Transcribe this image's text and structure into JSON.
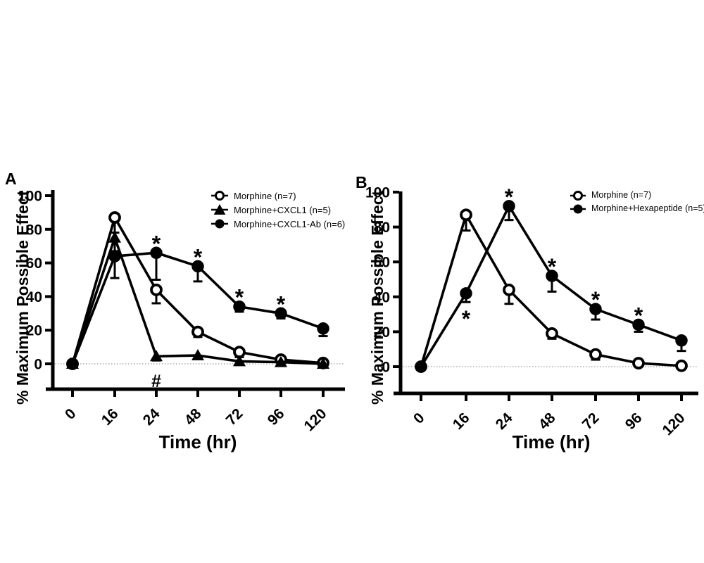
{
  "figure": {
    "background": "#ffffff",
    "ink_color": "#000000",
    "zero_line_color": "#9a9a9a"
  },
  "chart_data": [
    {
      "type": "line",
      "panel_label": "A",
      "title": "",
      "xlabel": "Time (hr)",
      "ylabel": "% Maximum Possible Effect",
      "x_tick_labels": [
        "0",
        "16",
        "24",
        "48",
        "72",
        "96",
        "120"
      ],
      "y_tick_labels": [
        "0",
        "20",
        "40",
        "60",
        "80",
        "100"
      ],
      "y_tick_values": [
        0,
        20,
        40,
        60,
        80,
        100
      ],
      "ylim": [
        0,
        100
      ],
      "grid": false,
      "zero_reference_line": true,
      "legend_position": "top-right",
      "series": [
        {
          "name": "Morphine (n=7)",
          "marker": "open-circle",
          "values": [
            0,
            87,
            44,
            19,
            7,
            2.5,
            0.5
          ],
          "err_low": [
            0,
            9,
            8,
            3,
            3,
            1.5,
            0
          ]
        },
        {
          "name": "Morphine+CXCL1 (n=5)",
          "marker": "filled-triangle",
          "values": [
            0,
            75,
            4.5,
            5,
            1.5,
            1,
            0
          ],
          "err_low": [
            0,
            8,
            2.5,
            1.5,
            0,
            0,
            0
          ]
        },
        {
          "name": "Morphine+CXCL1-Ab (n=6)",
          "marker": "filled-circle",
          "values": [
            0,
            64,
            66,
            58,
            34,
            30,
            21
          ],
          "err_low": [
            0,
            13,
            16,
            9,
            3,
            3,
            4.5
          ]
        }
      ],
      "annotations": [
        {
          "text": "*",
          "series": 2,
          "point": 2,
          "placement": "above"
        },
        {
          "text": "*",
          "series": 2,
          "point": 3,
          "placement": "above"
        },
        {
          "text": "*",
          "series": 2,
          "point": 4,
          "placement": "above"
        },
        {
          "text": "*",
          "series": 2,
          "point": 5,
          "placement": "above"
        },
        {
          "text": "#",
          "series": 1,
          "point": 2,
          "placement": "below"
        }
      ]
    },
    {
      "type": "line",
      "panel_label": "B",
      "title": "",
      "xlabel": "Time (hr)",
      "ylabel": "% Maximum Possible Effect",
      "x_tick_labels": [
        "0",
        "16",
        "24",
        "48",
        "72",
        "96",
        "120"
      ],
      "y_tick_labels": [
        "0",
        "20",
        "40",
        "60",
        "80",
        "100"
      ],
      "y_tick_values": [
        0,
        20,
        40,
        60,
        80,
        100
      ],
      "ylim": [
        0,
        100
      ],
      "grid": false,
      "zero_reference_line": true,
      "legend_position": "top-right",
      "series": [
        {
          "name": "Morphine (n=7)",
          "marker": "open-circle",
          "values": [
            0,
            87,
            44,
            19,
            7,
            2,
            0.5
          ],
          "err_low": [
            0,
            9,
            8,
            3,
            3,
            1.5,
            0
          ]
        },
        {
          "name": "Morphine+Hexapeptide (n=5)",
          "marker": "filled-circle",
          "values": [
            0,
            42,
            92,
            52,
            33,
            24,
            15
          ],
          "err_low": [
            0,
            5,
            8,
            9,
            6,
            4,
            6
          ]
        }
      ],
      "annotations": [
        {
          "text": "*",
          "series": 1,
          "point": 1,
          "placement": "below"
        },
        {
          "text": "*",
          "series": 1,
          "point": 2,
          "placement": "above"
        },
        {
          "text": "*",
          "series": 1,
          "point": 3,
          "placement": "above"
        },
        {
          "text": "*",
          "series": 1,
          "point": 4,
          "placement": "above"
        },
        {
          "text": "*",
          "series": 1,
          "point": 5,
          "placement": "above"
        }
      ]
    }
  ]
}
